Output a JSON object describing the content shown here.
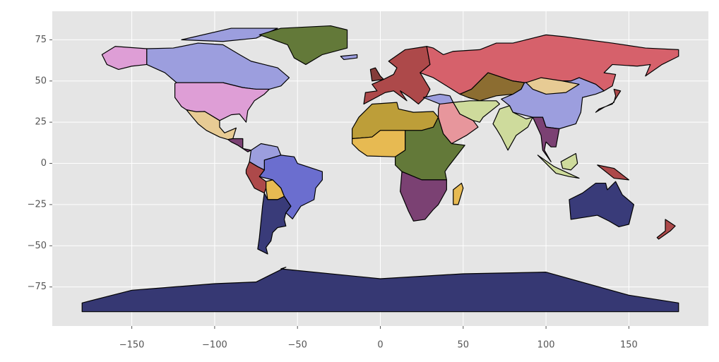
{
  "chart_data": {
    "type": "map",
    "xlim": [
      -198,
      198
    ],
    "ylim": [
      -98.7,
      92.3
    ],
    "xticks": [
      {
        "value": -150,
        "label": "−150"
      },
      {
        "value": -100,
        "label": "−100"
      },
      {
        "value": -50,
        "label": "−50"
      },
      0,
      50,
      100,
      150
    ],
    "yticks": [
      {
        "value": -75,
        "label": "−75"
      },
      {
        "value": -50,
        "label": "−50"
      },
      {
        "value": -25,
        "label": "−25"
      },
      0,
      25,
      50,
      75
    ],
    "grid": true
  }
}
